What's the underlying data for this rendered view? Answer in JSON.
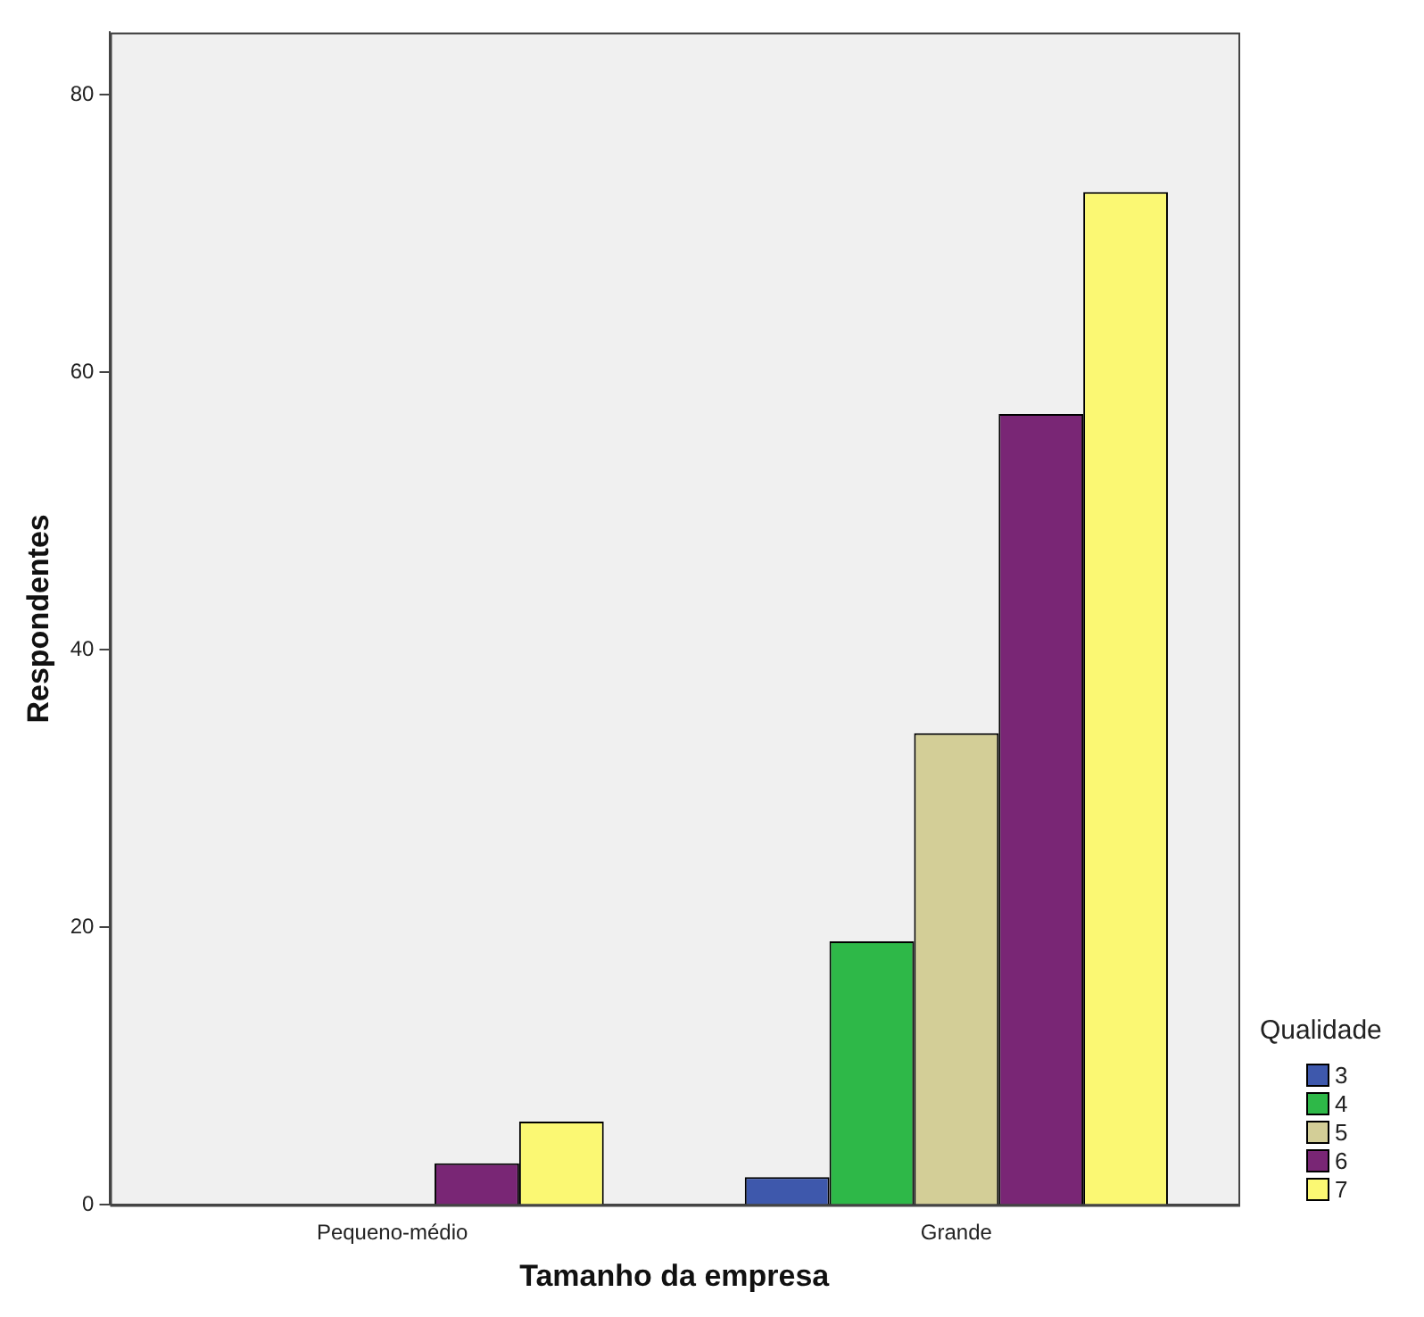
{
  "chart_data": {
    "type": "bar",
    "xlabel": "Tamanho da empresa",
    "ylabel": "Respondentes",
    "legend_title": "Qualidade",
    "categories": [
      "Pequeno-médio",
      "Grande"
    ],
    "series": [
      {
        "name": "3",
        "color": "#3e58ac",
        "values": [
          0,
          2
        ]
      },
      {
        "name": "4",
        "color": "#2eb848",
        "values": [
          0,
          19
        ]
      },
      {
        "name": "5",
        "color": "#d3ce97",
        "values": [
          0,
          34
        ]
      },
      {
        "name": "6",
        "color": "#792675",
        "values": [
          3,
          57
        ]
      },
      {
        "name": "7",
        "color": "#fbf873",
        "values": [
          6,
          73
        ]
      }
    ],
    "ylim": [
      0,
      84.5
    ],
    "yticks": [
      0,
      20,
      40,
      60,
      80
    ],
    "grid": false,
    "legend": "right"
  }
}
